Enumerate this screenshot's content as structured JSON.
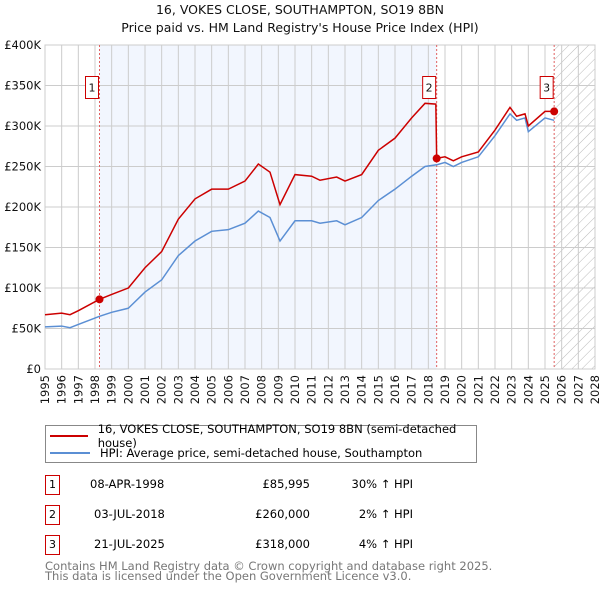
{
  "title": "16, VOKES CLOSE, SOUTHAMPTON, SO19 8BN",
  "subtitle": "Price paid vs. HM Land Registry's House Price Index (HPI)",
  "chart_data": {
    "type": "line",
    "xlim": [
      1995,
      2028
    ],
    "ylim": [
      0,
      400000
    ],
    "y_ticks": [
      0,
      50000,
      100000,
      150000,
      200000,
      250000,
      300000,
      350000,
      400000
    ],
    "y_tick_labels": [
      "£0",
      "£50K",
      "£100K",
      "£150K",
      "£200K",
      "£250K",
      "£300K",
      "£350K",
      "£400K"
    ],
    "x_ticks": [
      1995,
      1996,
      1997,
      1998,
      1999,
      2000,
      2001,
      2002,
      2003,
      2004,
      2005,
      2006,
      2007,
      2008,
      2009,
      2010,
      2011,
      2012,
      2013,
      2014,
      2015,
      2016,
      2017,
      2018,
      2019,
      2020,
      2021,
      2022,
      2023,
      2024,
      2025,
      2026,
      2027,
      2028
    ],
    "grid": true,
    "shaded_ranges": [
      [
        1998.27,
        2018.5
      ]
    ],
    "hatched_range": [
      2025.55,
      2028
    ],
    "series": [
      {
        "name": "16, VOKES CLOSE, SOUTHAMPTON, SO19 8BN (semi-detached house)",
        "color": "#cc0000",
        "x": [
          1995,
          1996,
          1996.5,
          1997,
          1998.27,
          1999,
          2000,
          2001,
          2002,
          2003,
          2004,
          2005,
          2006,
          2007,
          2007.8,
          2008.5,
          2009.1,
          2010,
          2011,
          2011.5,
          2012.5,
          2013,
          2014,
          2015,
          2016,
          2017,
          2017.8,
          2018.45,
          2018.5,
          2019,
          2019.5,
          2020,
          2021,
          2022,
          2022.9,
          2023.3,
          2023.8,
          2024,
          2025,
          2025.55
        ],
        "y": [
          67000,
          69000,
          67000,
          72000,
          86000,
          92000,
          100000,
          125000,
          145000,
          185000,
          210000,
          222000,
          222000,
          232000,
          253000,
          243000,
          203000,
          240000,
          238000,
          233000,
          237000,
          232000,
          240000,
          270000,
          285000,
          310000,
          328000,
          327000,
          260000,
          262000,
          257000,
          262000,
          268000,
          295000,
          323000,
          312000,
          315000,
          300000,
          318000,
          318000
        ]
      },
      {
        "name": "HPI: Average price, semi-detached house, Southampton",
        "color": "#5b8fd4",
        "x": [
          1995,
          1996,
          1996.5,
          1997,
          1998.27,
          1999,
          2000,
          2001,
          2002,
          2003,
          2004,
          2005,
          2006,
          2007,
          2007.8,
          2008.5,
          2009.1,
          2010,
          2011,
          2011.5,
          2012.5,
          2013,
          2014,
          2015,
          2016,
          2017,
          2017.8,
          2018.45,
          2018.5,
          2019,
          2019.5,
          2020,
          2021,
          2022,
          2022.9,
          2023.3,
          2023.8,
          2024,
          2025,
          2025.55
        ],
        "y": [
          52000,
          53000,
          51000,
          55000,
          65000,
          70000,
          75000,
          95000,
          110000,
          140000,
          158000,
          170000,
          172000,
          180000,
          195000,
          187000,
          158000,
          183000,
          183000,
          180000,
          183000,
          178000,
          187000,
          208000,
          222000,
          238000,
          250000,
          252000,
          252000,
          255000,
          250000,
          255000,
          262000,
          288000,
          315000,
          307000,
          310000,
          293000,
          310000,
          307000
        ]
      }
    ],
    "sales": [
      {
        "id": "1",
        "x": 1998.27,
        "y": 85995
      },
      {
        "id": "2",
        "x": 2018.5,
        "y": 260000
      },
      {
        "id": "3",
        "x": 2025.55,
        "y": 318000
      }
    ]
  },
  "legend": {
    "property": "16, VOKES CLOSE, SOUTHAMPTON, SO19 8BN (semi-detached house)",
    "hpi": "HPI: Average price, semi-detached house, Southampton"
  },
  "transactions": [
    {
      "id": "1",
      "date": "08-APR-1998",
      "price": "£85,995",
      "delta": "30% ↑ HPI"
    },
    {
      "id": "2",
      "date": "03-JUL-2018",
      "price": "£260,000",
      "delta": "2% ↑ HPI"
    },
    {
      "id": "3",
      "date": "21-JUL-2025",
      "price": "£318,000",
      "delta": "4% ↑ HPI"
    }
  ],
  "footer": [
    "Contains HM Land Registry data © Crown copyright and database right 2025.",
    "This data is licensed under the Open Government Licence v3.0."
  ]
}
